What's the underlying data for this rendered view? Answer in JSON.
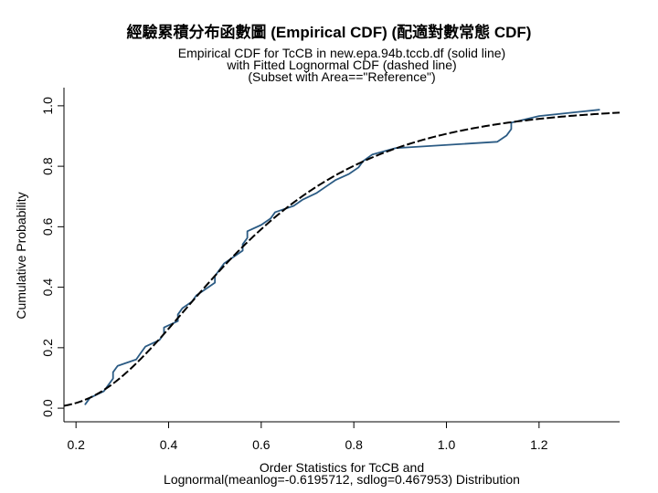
{
  "title": "經驗累積分布函數圖 (Empirical CDF) (配適對數常態 CDF)",
  "chart_data": {
    "type": "line",
    "title": [
      "Empirical CDF for TcCB in new.epa.94b.tccb.df (solid line)",
      "with Fitted Lognormal CDF (dashed line)",
      "(Subset with Area==\"Reference\")"
    ],
    "xlabel": [
      "Order Statistics for TcCB and",
      "Lognormal(meanlog=-0.6195712, sdlog=0.467953) Distribution"
    ],
    "ylabel": "Cumulative Probability",
    "xlim": [
      0.174,
      1.374
    ],
    "ylim": [
      -0.045,
      1.06
    ],
    "xticks": [
      0.2,
      0.4,
      0.6,
      0.8,
      1.0,
      1.2
    ],
    "xtick_labels": [
      "0.2",
      "0.4",
      "0.6",
      "0.8",
      "1.0",
      "1.2"
    ],
    "yticks": [
      0.0,
      0.2,
      0.4,
      0.6,
      0.8,
      1.0
    ],
    "ytick_labels": [
      "0.0",
      "0.2",
      "0.4",
      "0.6",
      "0.8",
      "1.0"
    ],
    "grid": false,
    "series": [
      {
        "color": "#2b5b84",
        "x": [
          0.22,
          0.23,
          0.26,
          0.27,
          0.28,
          0.28,
          0.29,
          0.33,
          0.34,
          0.35,
          0.38,
          0.39,
          0.39,
          0.42,
          0.42,
          0.43,
          0.45,
          0.46,
          0.48,
          0.5,
          0.5,
          0.51,
          0.52,
          0.54,
          0.56,
          0.56,
          0.57,
          0.57,
          0.6,
          0.62,
          0.63,
          0.67,
          0.69,
          0.72,
          0.74,
          0.76,
          0.79,
          0.81,
          0.82,
          0.84,
          0.89,
          1.11,
          1.13,
          1.14,
          1.14,
          1.2,
          1.33
        ],
        "y": [
          0.013,
          0.034,
          0.056,
          0.077,
          0.098,
          0.119,
          0.14,
          0.161,
          0.183,
          0.204,
          0.225,
          0.246,
          0.267,
          0.288,
          0.31,
          0.331,
          0.352,
          0.373,
          0.394,
          0.415,
          0.437,
          0.458,
          0.479,
          0.5,
          0.521,
          0.542,
          0.563,
          0.585,
          0.606,
          0.627,
          0.648,
          0.669,
          0.69,
          0.712,
          0.733,
          0.754,
          0.775,
          0.796,
          0.817,
          0.839,
          0.86,
          0.881,
          0.902,
          0.923,
          0.944,
          0.966,
          0.987
        ]
      },
      {
        "color": "#000000",
        "meanlog": -0.6195712,
        "sdlog": 0.467953
      }
    ]
  }
}
